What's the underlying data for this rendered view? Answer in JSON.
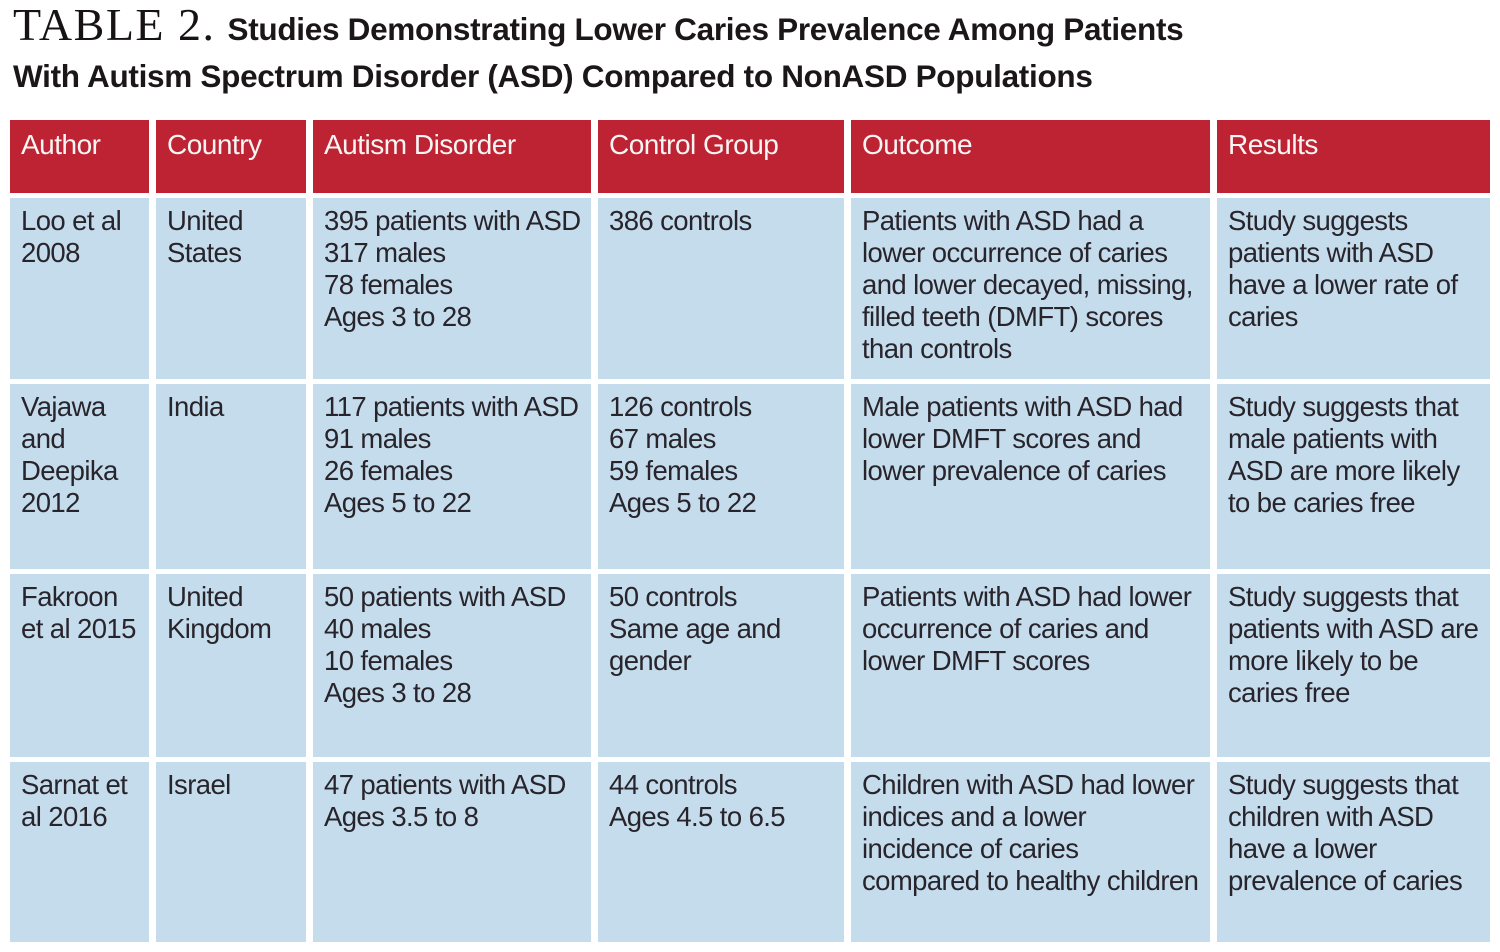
{
  "title": {
    "label": "TABLE 2.",
    "text": "Studies Demonstrating Lower Caries Prevalence Among Patients\nWith Autism Spectrum Disorder (ASD) Compared to NonASD Populations"
  },
  "colors": {
    "header_bg": "#bd2332",
    "header_text": "#f9f5f4",
    "cell_bg": "#c5dcec",
    "body_text": "#28242b"
  },
  "table": {
    "headers": [
      "Author",
      "Country",
      "Autism Disorder",
      "Control Group",
      "Outcome",
      "Results"
    ],
    "rows": [
      {
        "cells": [
          "Loo et al 2008",
          "United States",
          [
            "395 patients with ASD",
            "317 males",
            "78 females",
            "Ages 3 to 28"
          ],
          [
            "386 controls"
          ],
          "Patients with ASD had a lower occurrence of caries and lower decayed, missing, filled teeth (DMFT) scores than controls",
          "Study suggests patients with ASD have a lower rate of caries"
        ]
      },
      {
        "cells": [
          "Vajawa and Deepika 2012",
          "India",
          [
            "117 patients with ASD",
            "91 males",
            "26 females",
            "Ages 5 to 22"
          ],
          [
            "126 controls",
            "67 males",
            "59 females",
            "Ages 5 to 22"
          ],
          "Male patients with ASD had lower DMFT scores and lower prevalence of caries",
          "Study suggests that male patients with ASD are more likely to be caries free"
        ]
      },
      {
        "cells": [
          "Fakroon et al 2015",
          "United Kingdom",
          [
            "50 patients with ASD",
            "40 males",
            "10 females",
            "Ages 3 to 28"
          ],
          [
            "50 controls",
            "Same age and gender"
          ],
          "Patients with ASD had lower occurrence of caries and lower DMFT scores",
          "Study suggests that patients with ASD are more likely to be caries free"
        ]
      },
      {
        "cells": [
          "Sarnat et al 2016",
          "Israel",
          [
            "47 patients with ASD",
            "Ages 3.5 to 8"
          ],
          [
            "44 controls",
            "Ages 4.5 to 6.5"
          ],
          "Children with ASD had lower indices and a lower incidence of caries compared to healthy children",
          "Study suggests that children with ASD have a lower prevalence of caries"
        ]
      }
    ]
  }
}
